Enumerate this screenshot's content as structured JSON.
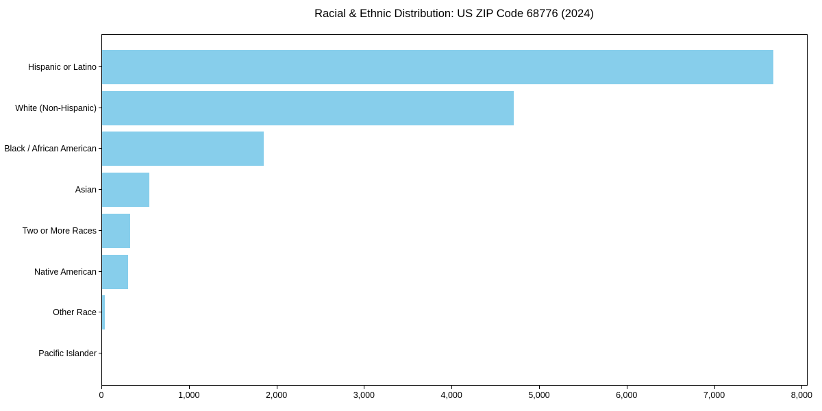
{
  "chart_data": {
    "type": "bar",
    "orientation": "horizontal",
    "title": "Racial & Ethnic Distribution: US ZIP Code 68776 (2024)",
    "categories": [
      "Hispanic or Latino",
      "White (Non-Hispanic)",
      "Black / African American",
      "Asian",
      "Two or More Races",
      "Native American",
      "Other Race",
      "Pacific Islander"
    ],
    "values": [
      7670,
      4700,
      1845,
      540,
      320,
      295,
      35,
      0
    ],
    "xlabel": "",
    "ylabel": "",
    "xlim": [
      0,
      8060
    ],
    "x_ticks": [
      0,
      1000,
      2000,
      3000,
      4000,
      5000,
      6000,
      7000,
      8000
    ],
    "x_tick_labels": [
      "0",
      "1,000",
      "2,000",
      "3,000",
      "4,000",
      "5,000",
      "6,000",
      "7,000",
      "8,000"
    ],
    "bar_color": "#87CEEB",
    "grid": false,
    "legend": null,
    "plot_border": true
  }
}
